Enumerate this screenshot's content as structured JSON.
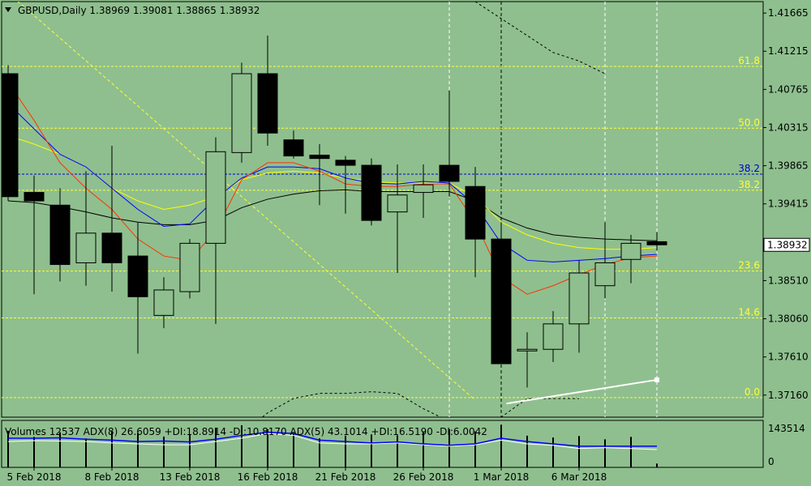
{
  "colors": {
    "background": "#8fbf8f",
    "bull_body": "#8fbf8f",
    "bear_body": "#000000",
    "fib_yellow": "#ffff33",
    "fib_blue": "#0000cc",
    "ma_red": "#ff3300",
    "ma_blue": "#0000ff",
    "ma_yellow": "#ffff00",
    "ma_black": "#000000",
    "trendline": "#ffffff"
  },
  "chart_data": {
    "type": "candlestick",
    "title": "GBPUSD,Daily  1.38969 1.39081 1.38865 1.38932",
    "symbol": "GBPUSD",
    "timeframe": "Daily",
    "last_ohlc": {
      "open": 1.38969,
      "high": 1.39081,
      "low": 1.38865,
      "close": 1.38932
    },
    "current_price_label": "1.38932",
    "ylim": [
      1.369,
      1.418
    ],
    "y_ticks": [
      "1.41665",
      "1.41215",
      "1.40765",
      "1.40315",
      "1.39865",
      "1.39415",
      "1.38510",
      "1.38060",
      "1.37610",
      "1.37160"
    ],
    "y_tick_values": [
      1.41665,
      1.41215,
      1.40765,
      1.40315,
      1.39865,
      1.39415,
      1.3851,
      1.3806,
      1.3761,
      1.3716
    ],
    "x_labels": [
      "5 Feb 2018",
      "8 Feb 2018",
      "13 Feb 2018",
      "16 Feb 2018",
      "21 Feb 2018",
      "26 Feb 2018",
      "1 Mar 2018",
      "6 Mar 2018"
    ],
    "x_label_index": [
      1,
      4,
      7,
      10,
      13,
      16,
      19,
      22
    ],
    "candles": [
      {
        "o": 1.4095,
        "h": 1.4105,
        "l": 1.3945,
        "c": 1.395
      },
      {
        "o": 1.3955,
        "h": 1.3975,
        "l": 1.3835,
        "c": 1.3945
      },
      {
        "o": 1.394,
        "h": 1.396,
        "l": 1.385,
        "c": 1.387
      },
      {
        "o": 1.3872,
        "h": 1.398,
        "l": 1.3845,
        "c": 1.3907
      },
      {
        "o": 1.3907,
        "h": 1.401,
        "l": 1.3838,
        "c": 1.3872
      },
      {
        "o": 1.388,
        "h": 1.392,
        "l": 1.3765,
        "c": 1.3832
      },
      {
        "o": 1.381,
        "h": 1.3855,
        "l": 1.3795,
        "c": 1.384
      },
      {
        "o": 1.3838,
        "h": 1.39,
        "l": 1.383,
        "c": 1.3895
      },
      {
        "o": 1.3895,
        "h": 1.402,
        "l": 1.38,
        "c": 1.4003
      },
      {
        "o": 1.4002,
        "h": 1.4108,
        "l": 1.399,
        "c": 1.4095
      },
      {
        "o": 1.4095,
        "h": 1.414,
        "l": 1.401,
        "c": 1.4025
      },
      {
        "o": 1.4017,
        "h": 1.4028,
        "l": 1.3995,
        "c": 1.3998
      },
      {
        "o": 1.3999,
        "h": 1.4012,
        "l": 1.394,
        "c": 1.3995
      },
      {
        "o": 1.3993,
        "h": 1.3998,
        "l": 1.393,
        "c": 1.3987
      },
      {
        "o": 1.3987,
        "h": 1.3995,
        "l": 1.3916,
        "c": 1.3922
      },
      {
        "o": 1.3932,
        "h": 1.3988,
        "l": 1.386,
        "c": 1.3952
      },
      {
        "o": 1.3955,
        "h": 1.3988,
        "l": 1.3925,
        "c": 1.3964
      },
      {
        "o": 1.3987,
        "h": 1.4075,
        "l": 1.395,
        "c": 1.3968
      },
      {
        "o": 1.3962,
        "h": 1.3985,
        "l": 1.3855,
        "c": 1.39
      },
      {
        "o": 1.39,
        "h": 1.392,
        "l": 1.3753,
        "c": 1.3753
      },
      {
        "o": 1.377,
        "h": 1.379,
        "l": 1.3725,
        "c": 1.377
      },
      {
        "o": 1.377,
        "h": 1.3815,
        "l": 1.3755,
        "c": 1.38
      },
      {
        "o": 1.38,
        "h": 1.3875,
        "l": 1.3766,
        "c": 1.386
      },
      {
        "o": 1.3845,
        "h": 1.392,
        "l": 1.383,
        "c": 1.3872
      },
      {
        "o": 1.3876,
        "h": 1.3905,
        "l": 1.3848,
        "c": 1.3895
      },
      {
        "o": 1.38969,
        "h": 1.39081,
        "l": 1.38865,
        "c": 1.38932
      }
    ],
    "ma_red": [
      1.4085,
      1.404,
      1.399,
      1.396,
      1.3935,
      1.39,
      1.388,
      1.3875,
      1.391,
      1.397,
      1.399,
      1.399,
      1.398,
      1.3965,
      1.3962,
      1.3962,
      1.3965,
      1.3965,
      1.392,
      1.3855,
      1.3835,
      1.3845,
      1.3858,
      1.387,
      1.3878,
      1.388
    ],
    "ma_blue": [
      1.406,
      1.403,
      1.4,
      1.3985,
      1.396,
      1.3935,
      1.3915,
      1.3918,
      1.3948,
      1.3972,
      1.3985,
      1.3985,
      1.3983,
      1.3972,
      1.3966,
      1.3965,
      1.3968,
      1.3966,
      1.394,
      1.3895,
      1.3875,
      1.3873,
      1.3875,
      1.3877,
      1.388,
      1.3882
    ],
    "ma_yellow": [
      1.4022,
      1.4012,
      1.4,
      1.3985,
      1.396,
      1.3945,
      1.3935,
      1.394,
      1.395,
      1.397,
      1.3978,
      1.398,
      1.3978,
      1.3972,
      1.3968,
      1.3966,
      1.3966,
      1.3966,
      1.395,
      1.392,
      1.3905,
      1.3895,
      1.389,
      1.3888,
      1.3888,
      1.389
    ],
    "ma_black": [
      1.3945,
      1.3943,
      1.3938,
      1.3932,
      1.3925,
      1.392,
      1.3917,
      1.3917,
      1.3922,
      1.3937,
      1.3947,
      1.3953,
      1.3957,
      1.3958,
      1.3956,
      1.3956,
      1.3956,
      1.3956,
      1.3945,
      1.3925,
      1.3913,
      1.3905,
      1.3902,
      1.39,
      1.3899,
      1.3898
    ],
    "upper_band": [
      1.418,
      1.416,
      1.414,
      1.412,
      1.411,
      1.4095
    ],
    "lower_band": [
      1.364,
      1.367,
      1.3695,
      1.3712,
      1.3718,
      1.3718,
      1.372,
      1.3718,
      1.37,
      1.3685,
      1.368,
      1.369,
      1.3712,
      1.3712,
      1.3712
    ],
    "fib_levels": [
      {
        "label": "61.8",
        "value": 1.41036,
        "color": "yellow"
      },
      {
        "label": "50.0",
        "value": 1.40307,
        "color": "yellow"
      },
      {
        "label": "38.2",
        "value": 1.39765,
        "color": "blue"
      },
      {
        "label": "38.2",
        "value": 1.39576,
        "color": "yellow"
      },
      {
        "label": "23.6",
        "value": 1.38623,
        "color": "yellow"
      },
      {
        "label": "14.6",
        "value": 1.3807,
        "color": "yellow"
      },
      {
        "label": "0.0",
        "value": 1.3713,
        "color": "yellow"
      }
    ],
    "trendline": {
      "from_index": 19.2,
      "from_value": 1.3706,
      "to_index": 25,
      "to_value": 1.3734
    },
    "diag_line": {
      "from_index": 0.2,
      "from_value": 1.4185,
      "to_index": 18,
      "to_value": 1.371
    },
    "vlines_dashed_white": [
      17,
      23,
      25
    ],
    "vline_dotted_black": [
      19
    ],
    "volume_pane": {
      "header": "Volumes 12537  ADX(8) 26.6059 +DI:18.8914 -DI:10.8170  ADX(5) 43.1014 +DI:16.5190 -DI:6.0042",
      "y_ticks": [
        "143514",
        "0"
      ],
      "volume": [
        120000,
        100000,
        115000,
        95000,
        118000,
        112000,
        101000,
        108000,
        130000,
        138000,
        125000,
        112000,
        95000,
        104000,
        108000,
        105000,
        118000,
        125000,
        118000,
        140000,
        104000,
        98000,
        103000,
        92000,
        100000,
        12537
      ],
      "adx_blue": [
        0.62,
        0.62,
        0.63,
        0.6,
        0.58,
        0.55,
        0.56,
        0.54,
        0.6,
        0.68,
        0.75,
        0.72,
        0.58,
        0.55,
        0.52,
        0.54,
        0.5,
        0.47,
        0.5,
        0.62,
        0.55,
        0.5,
        0.45,
        0.45,
        0.45,
        0.45
      ],
      "adx_white": [
        0.55,
        0.57,
        0.56,
        0.55,
        0.52,
        0.5,
        0.48,
        0.48,
        0.55,
        0.62,
        0.72,
        0.68,
        0.52,
        0.5,
        0.5,
        0.52,
        0.48,
        0.45,
        0.48,
        0.58,
        0.5,
        0.47,
        0.4,
        0.42,
        0.4,
        0.38
      ]
    }
  }
}
